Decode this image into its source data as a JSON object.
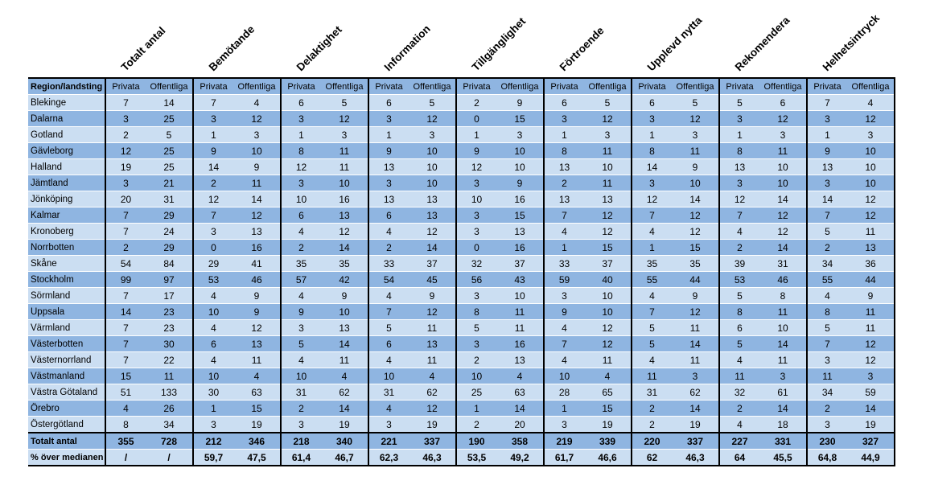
{
  "colors": {
    "row_light": "#CBDEF2",
    "row_dark": "#8FB5E1",
    "border": "#000000",
    "text": "#000000"
  },
  "chart_data": {
    "type": "table",
    "corner_header": "Region/landsting",
    "groups": [
      "Totalt antal",
      "Bemötande",
      "Delaktighet",
      "Information",
      "Tillgänglighet",
      "Förtroende",
      "Upplevd nytta",
      "Rekomendera",
      "Helhetsintryck"
    ],
    "sub_columns": [
      "Privata",
      "Offentliga"
    ],
    "regions": [
      {
        "region": "Blekinge",
        "values": [
          "7",
          "14",
          "7",
          "4",
          "6",
          "5",
          "6",
          "5",
          "2",
          "9",
          "6",
          "5",
          "6",
          "5",
          "5",
          "6",
          "7",
          "4"
        ]
      },
      {
        "region": "Dalarna",
        "values": [
          "3",
          "25",
          "3",
          "12",
          "3",
          "12",
          "3",
          "12",
          "0",
          "15",
          "3",
          "12",
          "3",
          "12",
          "3",
          "12",
          "3",
          "12"
        ]
      },
      {
        "region": "Gotland",
        "values": [
          "2",
          "5",
          "1",
          "3",
          "1",
          "3",
          "1",
          "3",
          "1",
          "3",
          "1",
          "3",
          "1",
          "3",
          "1",
          "3",
          "1",
          "3"
        ]
      },
      {
        "region": "Gävleborg",
        "values": [
          "12",
          "25",
          "9",
          "10",
          "8",
          "11",
          "9",
          "10",
          "9",
          "10",
          "8",
          "11",
          "8",
          "11",
          "8",
          "11",
          "9",
          "10"
        ]
      },
      {
        "region": "Halland",
        "values": [
          "19",
          "25",
          "14",
          "9",
          "12",
          "11",
          "13",
          "10",
          "12",
          "10",
          "13",
          "10",
          "14",
          "9",
          "13",
          "10",
          "13",
          "10"
        ]
      },
      {
        "region": "Jämtland",
        "values": [
          "3",
          "21",
          "2",
          "11",
          "3",
          "10",
          "3",
          "10",
          "3",
          "9",
          "2",
          "11",
          "3",
          "10",
          "3",
          "10",
          "3",
          "10"
        ]
      },
      {
        "region": "Jönköping",
        "values": [
          "20",
          "31",
          "12",
          "14",
          "10",
          "16",
          "13",
          "13",
          "10",
          "16",
          "13",
          "13",
          "12",
          "14",
          "12",
          "14",
          "14",
          "12"
        ]
      },
      {
        "region": "Kalmar",
        "values": [
          "7",
          "29",
          "7",
          "12",
          "6",
          "13",
          "6",
          "13",
          "3",
          "15",
          "7",
          "12",
          "7",
          "12",
          "7",
          "12",
          "7",
          "12"
        ]
      },
      {
        "region": "Kronoberg",
        "values": [
          "7",
          "24",
          "3",
          "13",
          "4",
          "12",
          "4",
          "12",
          "3",
          "13",
          "4",
          "12",
          "4",
          "12",
          "4",
          "12",
          "5",
          "11"
        ]
      },
      {
        "region": "Norrbotten",
        "values": [
          "2",
          "29",
          "0",
          "16",
          "2",
          "14",
          "2",
          "14",
          "0",
          "16",
          "1",
          "15",
          "1",
          "15",
          "2",
          "14",
          "2",
          "13"
        ]
      },
      {
        "region": "Skåne",
        "values": [
          "54",
          "84",
          "29",
          "41",
          "35",
          "35",
          "33",
          "37",
          "32",
          "37",
          "33",
          "37",
          "35",
          "35",
          "39",
          "31",
          "34",
          "36"
        ]
      },
      {
        "region": "Stockholm",
        "values": [
          "99",
          "97",
          "53",
          "46",
          "57",
          "42",
          "54",
          "45",
          "56",
          "43",
          "59",
          "40",
          "55",
          "44",
          "53",
          "46",
          "55",
          "44"
        ]
      },
      {
        "region": "Sörmland",
        "values": [
          "7",
          "17",
          "4",
          "9",
          "4",
          "9",
          "4",
          "9",
          "3",
          "10",
          "3",
          "10",
          "4",
          "9",
          "5",
          "8",
          "4",
          "9"
        ]
      },
      {
        "region": "Uppsala",
        "values": [
          "14",
          "23",
          "10",
          "9",
          "9",
          "10",
          "7",
          "12",
          "8",
          "11",
          "9",
          "10",
          "7",
          "12",
          "8",
          "11",
          "8",
          "11"
        ]
      },
      {
        "region": "Värmland",
        "values": [
          "7",
          "23",
          "4",
          "12",
          "3",
          "13",
          "5",
          "11",
          "5",
          "11",
          "4",
          "12",
          "5",
          "11",
          "6",
          "10",
          "5",
          "11"
        ]
      },
      {
        "region": "Västerbotten",
        "values": [
          "7",
          "30",
          "6",
          "13",
          "5",
          "14",
          "6",
          "13",
          "3",
          "16",
          "7",
          "12",
          "5",
          "14",
          "5",
          "14",
          "7",
          "12"
        ]
      },
      {
        "region": "Västernorrland",
        "values": [
          "7",
          "22",
          "4",
          "11",
          "4",
          "11",
          "4",
          "11",
          "2",
          "13",
          "4",
          "11",
          "4",
          "11",
          "4",
          "11",
          "3",
          "12"
        ]
      },
      {
        "region": "Västmanland",
        "values": [
          "15",
          "11",
          "10",
          "4",
          "10",
          "4",
          "10",
          "4",
          "10",
          "4",
          "10",
          "4",
          "11",
          "3",
          "11",
          "3",
          "11",
          "3"
        ]
      },
      {
        "region": "Västra Götaland",
        "values": [
          "51",
          "133",
          "30",
          "63",
          "31",
          "62",
          "31",
          "62",
          "25",
          "63",
          "28",
          "65",
          "31",
          "62",
          "32",
          "61",
          "34",
          "59"
        ]
      },
      {
        "region": "Örebro",
        "values": [
          "4",
          "26",
          "1",
          "15",
          "2",
          "14",
          "4",
          "12",
          "1",
          "14",
          "1",
          "15",
          "2",
          "14",
          "2",
          "14",
          "2",
          "14"
        ]
      },
      {
        "region": "Östergötland",
        "values": [
          "8",
          "34",
          "3",
          "19",
          "3",
          "19",
          "3",
          "19",
          "2",
          "20",
          "3",
          "19",
          "2",
          "19",
          "4",
          "18",
          "3",
          "19"
        ]
      }
    ],
    "totals_row": {
      "label": "Totalt antal",
      "values": [
        "355",
        "728",
        "212",
        "346",
        "218",
        "340",
        "221",
        "337",
        "190",
        "358",
        "219",
        "339",
        "220",
        "337",
        "227",
        "331",
        "230",
        "327"
      ]
    },
    "median_row": {
      "label": "% över medianen",
      "values": [
        "/",
        "/",
        "59,7",
        "47,5",
        "61,4",
        "46,7",
        "62,3",
        "46,3",
        "53,5",
        "49,2",
        "61,7",
        "46,6",
        "62",
        "46,3",
        "64",
        "45,5",
        "64,8",
        "44,9"
      ]
    }
  }
}
